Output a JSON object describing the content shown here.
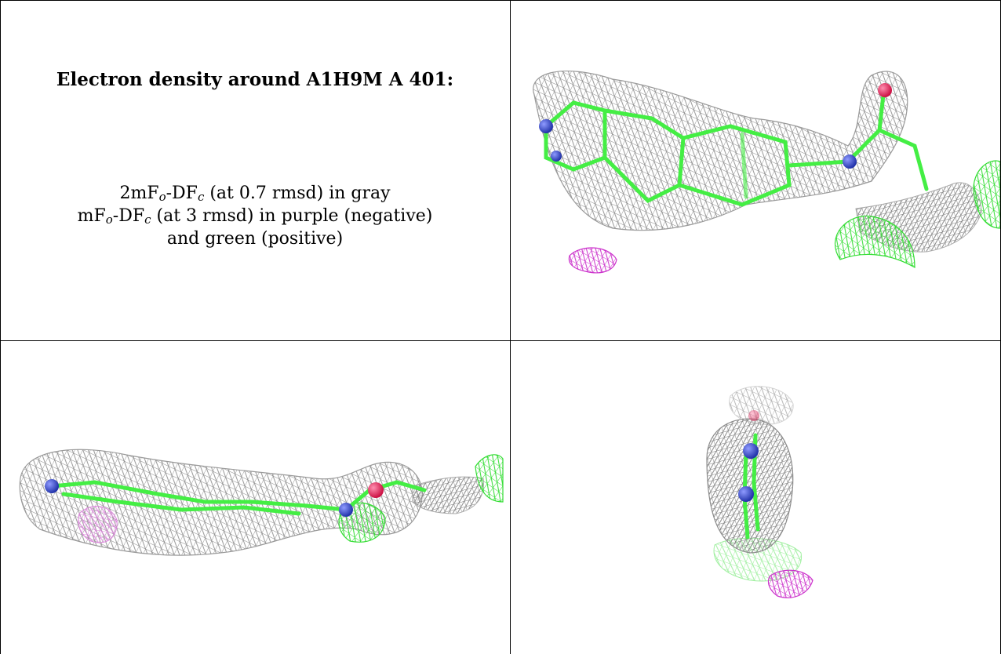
{
  "caption": {
    "title": "Electron density around A1H9M A 401:",
    "line1_prefix": "2mF",
    "line1_sub_o": "o",
    "line1_mid": "-DF",
    "line1_sub_c": "c",
    "line1_suffix": " (at 0.7 rmsd) in gray",
    "line2_prefix": "mF",
    "line2_sub_o": "o",
    "line2_mid": "-DF",
    "line2_sub_c": "c",
    "line2_suffix": " (at 3 rmsd) in purple (negative)",
    "line3": "and green (positive)"
  },
  "panels": [
    {
      "view": "top-right",
      "content": "ligand-density-view-1"
    },
    {
      "view": "bottom-left",
      "content": "ligand-density-view-2"
    },
    {
      "view": "bottom-right",
      "content": "ligand-density-view-3"
    }
  ],
  "colors": {
    "mesh_2fofc": "#8c8c8c",
    "mesh_negative": "#cc33cc",
    "mesh_positive": "#33dd33",
    "carbon": "#44ee44",
    "nitrogen": "#3344cc",
    "oxygen": "#ee2266"
  }
}
